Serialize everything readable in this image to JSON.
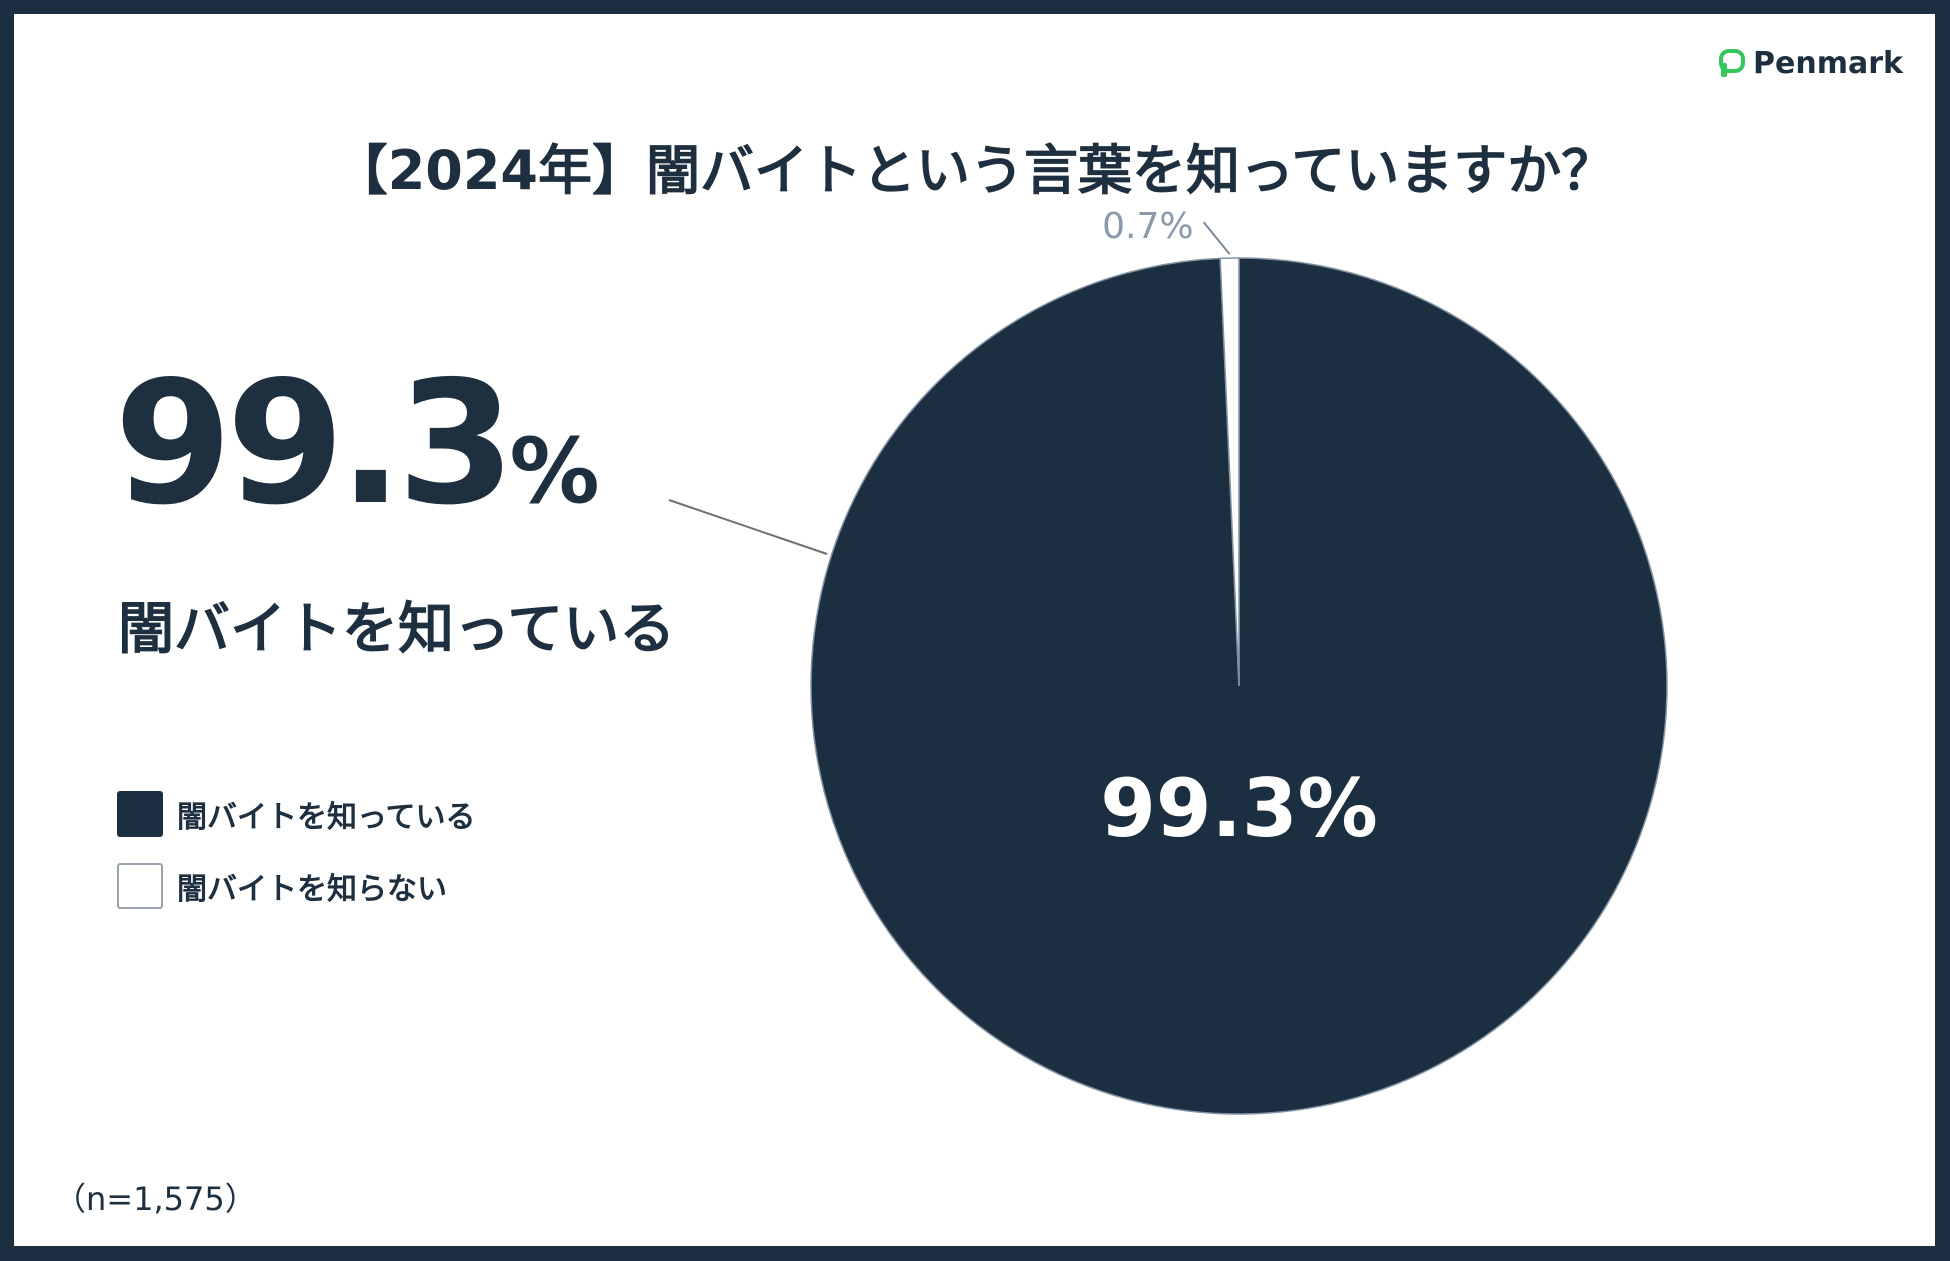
{
  "brand": {
    "name": "Penmark",
    "accent": "#34c759"
  },
  "chart_data": {
    "type": "pie",
    "title": "【2024年】闇バイトという言葉を知っていますか？",
    "categories": [
      "闇バイトを知っている",
      "闇バイトを知らない"
    ],
    "values": [
      99.3,
      0.7
    ],
    "value_labels": [
      "99.3%",
      "0.7%"
    ],
    "colors": [
      "#1c2f40",
      "#ffffff"
    ],
    "legend_position": "left",
    "note": "（n=1,575）"
  },
  "highlight": {
    "value": "99.3",
    "unit": "%",
    "label": "闇バイトを知っている"
  }
}
